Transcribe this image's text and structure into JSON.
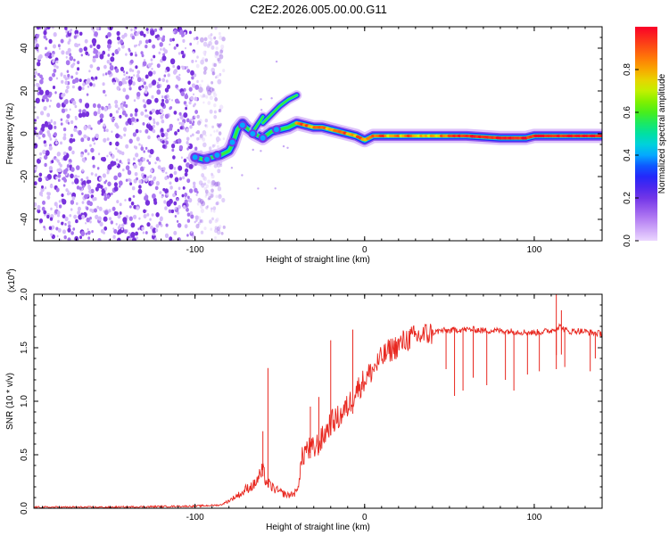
{
  "title": "C2E2.2026.005.00.00.G11",
  "chart_data": [
    {
      "type": "heatmap",
      "name": "spectrogram",
      "title": "C2E2.2026.005.00.00.G11",
      "xlabel": "Height of straight line (km)",
      "ylabel": "Frequency (Hz)",
      "xlim": [
        -195,
        140
      ],
      "ylim": [
        -50,
        50
      ],
      "xticks": [
        -100,
        0,
        100
      ],
      "yticks": [
        -40,
        -20,
        0,
        20,
        40
      ],
      "colorbar": {
        "label": "Normalized spectral amplitude",
        "range": [
          0.0,
          1.0
        ],
        "ticks": [
          0.0,
          0.2,
          0.4,
          0.6,
          0.8
        ]
      },
      "noise_region_x": [
        -195,
        -88
      ],
      "ridge": {
        "x": [
          -100,
          -95,
          -90,
          -85,
          -80,
          -78,
          -75,
          -72,
          -70,
          -65,
          -60,
          -55,
          -50,
          -45,
          -40,
          -35,
          -30,
          -25,
          -20,
          -15,
          -10,
          -5,
          0,
          5,
          10,
          20,
          40,
          60,
          80,
          95,
          100,
          110,
          120,
          130,
          140
        ],
        "y": [
          -11,
          -12,
          -11,
          -10,
          -8,
          -5,
          2,
          5,
          3,
          0,
          -2,
          1,
          2,
          3,
          5,
          4,
          3,
          3,
          2,
          1,
          0,
          -1,
          -3,
          -1,
          -1,
          -1,
          -1,
          -1,
          -2,
          -2,
          -1,
          -1,
          -1,
          -1,
          -1
        ]
      },
      "branches": [
        {
          "x": [
            -60,
            -55,
            -50,
            -45,
            -40
          ],
          "y": [
            5,
            9,
            13,
            16,
            18
          ]
        },
        {
          "x": [
            -65,
            -60
          ],
          "y": [
            2,
            8
          ]
        }
      ]
    },
    {
      "type": "line",
      "name": "snr",
      "xlabel": "Height of straight line (km)",
      "ylabel": "SNR (10 * v/v)",
      "exponent_label": "(x10",
      "exponent_power": "4",
      "exponent_close": ")",
      "xlim": [
        -195,
        140
      ],
      "ylim": [
        0,
        2.0
      ],
      "xticks": [
        -100,
        0,
        100
      ],
      "yticks": [
        0.0,
        0.5,
        1.0,
        1.5,
        2.0
      ],
      "yticklabels": [
        "0.0",
        "0.5",
        "1.0",
        "1.5",
        "2.0"
      ],
      "color": "#e8271f",
      "series": [
        {
          "name": "SNR",
          "x": [
            -195,
            -150,
            -100,
            -85,
            -80,
            -75,
            -72,
            -70,
            -65,
            -62,
            -60,
            -58,
            -55,
            -50,
            -45,
            -40,
            -37,
            -35,
            -30,
            -25,
            -20,
            -15,
            -10,
            -5,
            0,
            5,
            10,
            15,
            20,
            25,
            30,
            35,
            40,
            45,
            50,
            55,
            60,
            65,
            70,
            80,
            90,
            100,
            105,
            110,
            115,
            120,
            125,
            130,
            135,
            140
          ],
          "values": [
            0.01,
            0.01,
            0.02,
            0.03,
            0.07,
            0.12,
            0.14,
            0.18,
            0.22,
            0.3,
            0.35,
            0.25,
            0.2,
            0.15,
            0.12,
            0.15,
            0.45,
            0.55,
            0.55,
            0.65,
            0.8,
            0.85,
            0.95,
            1.1,
            1.2,
            1.3,
            1.4,
            1.48,
            1.52,
            1.58,
            1.6,
            1.62,
            1.64,
            1.66,
            1.66,
            1.67,
            1.67,
            1.67,
            1.66,
            1.66,
            1.65,
            1.64,
            1.65,
            1.66,
            1.7,
            1.65,
            1.66,
            1.65,
            1.64,
            1.63
          ]
        }
      ],
      "spikes": [
        {
          "x": -57,
          "y": 1.31
        },
        {
          "x": -60,
          "y": 0.72
        },
        {
          "x": -32,
          "y": 0.95
        },
        {
          "x": -27,
          "y": 1.04
        },
        {
          "x": -20,
          "y": 1.57
        },
        {
          "x": -7,
          "y": 1.67
        },
        {
          "x": 113,
          "y": 2.05
        },
        {
          "x": 116,
          "y": 1.85
        }
      ],
      "dips": [
        {
          "x": 48,
          "y": 1.3
        },
        {
          "x": 53,
          "y": 1.05
        },
        {
          "x": 58,
          "y": 1.1
        },
        {
          "x": 64,
          "y": 1.22
        },
        {
          "x": 72,
          "y": 1.15
        },
        {
          "x": 83,
          "y": 1.2
        },
        {
          "x": 88,
          "y": 1.1
        },
        {
          "x": 96,
          "y": 1.25
        },
        {
          "x": 103,
          "y": 1.28
        },
        {
          "x": 113,
          "y": 1.3
        },
        {
          "x": 118,
          "y": 1.32
        },
        {
          "x": 133,
          "y": 1.28
        },
        {
          "x": 136,
          "y": 1.4
        }
      ]
    }
  ]
}
